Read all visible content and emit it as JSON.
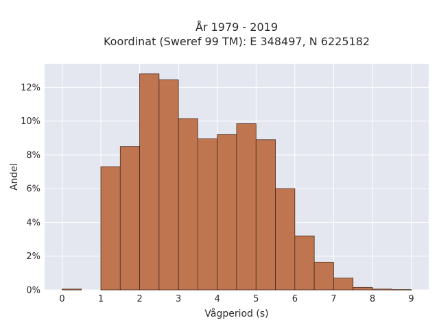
{
  "chart_data": {
    "type": "bar",
    "title_lines": [
      "År 1979 - 2019",
      "Koordinat (Sweref 99 TM): E 348497, N 6225182"
    ],
    "xlabel": "Vågperiod (s)",
    "ylabel": "Andel",
    "bin_width": 0.5,
    "bins": [
      {
        "x0": 0.0,
        "x1": 0.5,
        "value": 0.05
      },
      {
        "x0": 0.5,
        "x1": 1.0,
        "value": 0.0
      },
      {
        "x0": 1.0,
        "x1": 1.5,
        "value": 7.3
      },
      {
        "x0": 1.5,
        "x1": 2.0,
        "value": 8.5
      },
      {
        "x0": 2.0,
        "x1": 2.5,
        "value": 12.8
      },
      {
        "x0": 2.5,
        "x1": 3.0,
        "value": 12.45
      },
      {
        "x0": 3.0,
        "x1": 3.5,
        "value": 10.15
      },
      {
        "x0": 3.5,
        "x1": 4.0,
        "value": 8.95
      },
      {
        "x0": 4.0,
        "x1": 4.5,
        "value": 9.2
      },
      {
        "x0": 4.5,
        "x1": 5.0,
        "value": 9.85
      },
      {
        "x0": 5.0,
        "x1": 5.5,
        "value": 8.9
      },
      {
        "x0": 5.5,
        "x1": 6.0,
        "value": 6.0
      },
      {
        "x0": 6.0,
        "x1": 6.5,
        "value": 3.2
      },
      {
        "x0": 6.5,
        "x1": 7.0,
        "value": 1.65
      },
      {
        "x0": 7.0,
        "x1": 7.5,
        "value": 0.7
      },
      {
        "x0": 7.5,
        "x1": 8.0,
        "value": 0.15
      },
      {
        "x0": 8.0,
        "x1": 8.5,
        "value": 0.05
      },
      {
        "x0": 8.5,
        "x1": 9.0,
        "value": 0.02
      }
    ],
    "xlim": [
      -0.45,
      9.45
    ],
    "ylim": [
      0,
      13.4
    ],
    "x_ticks": [
      0,
      1,
      2,
      3,
      4,
      5,
      6,
      7,
      8,
      9
    ],
    "x_tick_labels": [
      "0",
      "1",
      "2",
      "3",
      "4",
      "5",
      "6",
      "7",
      "8",
      "9"
    ],
    "y_ticks": [
      0,
      2,
      4,
      6,
      8,
      10,
      12
    ],
    "y_tick_labels": [
      "0%",
      "2%",
      "4%",
      "6%",
      "8%",
      "10%",
      "12%"
    ],
    "grid": true,
    "legend": "none",
    "colors": {
      "bar_fill": "#bf7650",
      "bar_stroke": "#4a2a18",
      "plot_background": "#e5e7f0",
      "grid": "#ffffff"
    }
  }
}
